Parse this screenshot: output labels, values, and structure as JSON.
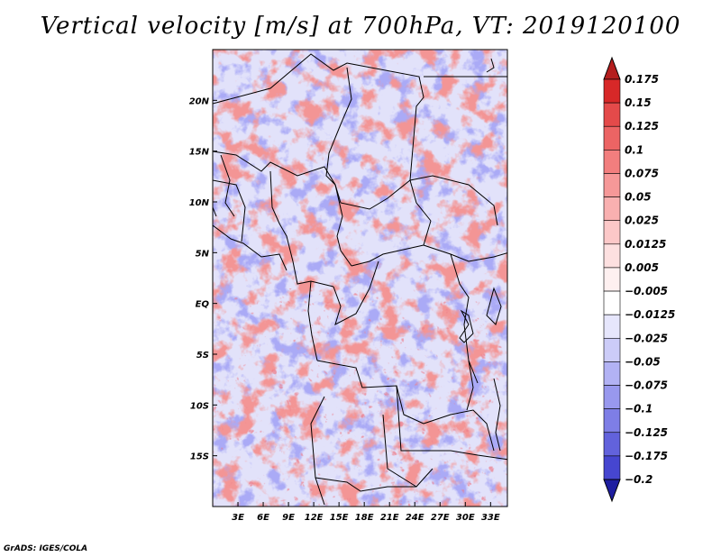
{
  "title": "Vertical velocity [m/s] at 700hPa, VT: 2019120100",
  "footer": "GrADS: IGES/COLA",
  "map": {
    "lon_range": [
      0,
      35
    ],
    "lat_range": [
      -20,
      25
    ],
    "lon_ticks": [
      {
        "value": 3,
        "label": "3E"
      },
      {
        "value": 6,
        "label": "6E"
      },
      {
        "value": 9,
        "label": "9E"
      },
      {
        "value": 12,
        "label": "12E"
      },
      {
        "value": 15,
        "label": "15E"
      },
      {
        "value": 18,
        "label": "18E"
      },
      {
        "value": 21,
        "label": "21E"
      },
      {
        "value": 24,
        "label": "24E"
      },
      {
        "value": 27,
        "label": "27E"
      },
      {
        "value": 30,
        "label": "30E"
      },
      {
        "value": 33,
        "label": "33E"
      }
    ],
    "lat_ticks": [
      {
        "value": 20,
        "label": "20N"
      },
      {
        "value": 15,
        "label": "15N"
      },
      {
        "value": 10,
        "label": "10N"
      },
      {
        "value": 5,
        "label": "5N"
      },
      {
        "value": 0,
        "label": "EQ"
      },
      {
        "value": -5,
        "label": "5S"
      },
      {
        "value": -10,
        "label": "10S"
      },
      {
        "value": -15,
        "label": "15S"
      }
    ]
  },
  "colorbar": {
    "levels": [
      {
        "label": "0.175",
        "color": "#d72828"
      },
      {
        "label": "0.15",
        "color": "#e44a4a"
      },
      {
        "label": "0.125",
        "color": "#ec6464"
      },
      {
        "label": "0.1",
        "color": "#f27e7e"
      },
      {
        "label": "0.075",
        "color": "#f69898"
      },
      {
        "label": "0.05",
        "color": "#f9b0b0"
      },
      {
        "label": "0.025",
        "color": "#fcc8c8"
      },
      {
        "label": "0.0125",
        "color": "#fde0e0"
      },
      {
        "label": "0.005",
        "color": "#fef0f0"
      },
      {
        "label": "−0.005",
        "color": "#ffffff"
      },
      {
        "label": "−0.0125",
        "color": "#e6e6fc"
      },
      {
        "label": "−0.025",
        "color": "#ccccf8"
      },
      {
        "label": "−0.05",
        "color": "#b2b2f4"
      },
      {
        "label": "−0.075",
        "color": "#9898ee"
      },
      {
        "label": "−0.1",
        "color": "#7e7ee6"
      },
      {
        "label": "−0.125",
        "color": "#6262dc"
      },
      {
        "label": "−0.175",
        "color": "#4646d0"
      },
      {
        "label": "−0.2",
        "color": "#2e2ebe"
      }
    ],
    "top_color": "#b41e1e",
    "bottom_color": "#1e1ea0"
  }
}
